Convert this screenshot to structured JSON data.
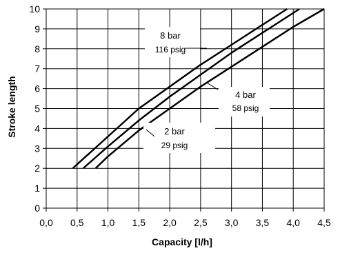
{
  "chart_data": {
    "type": "line",
    "title": "",
    "xlabel": "Capacity [l/h]",
    "ylabel": "Stroke length",
    "xlim": [
      0,
      4.5
    ],
    "ylim": [
      0,
      10
    ],
    "x_ticks": [
      "0,0",
      "0,5",
      "1,0",
      "1,5",
      "2,0",
      "2,5",
      "3,0",
      "3,5",
      "4,0",
      "4,5"
    ],
    "y_ticks": [
      "0",
      "1",
      "2",
      "3",
      "4",
      "5",
      "6",
      "7",
      "8",
      "9",
      "10"
    ],
    "grid": true,
    "legend": "none",
    "series": [
      {
        "name": "8 bar",
        "x": [
          0.43,
          1.0,
          1.5,
          2.0,
          2.5,
          3.0,
          3.5,
          3.9
        ],
        "y": [
          2.0,
          3.6,
          5.0,
          6.1,
          7.2,
          8.2,
          9.2,
          10.0
        ]
      },
      {
        "name": "4 bar",
        "x": [
          0.6,
          1.0,
          1.5,
          2.0,
          2.5,
          3.0,
          3.5,
          4.1
        ],
        "y": [
          2.0,
          3.1,
          4.4,
          5.6,
          6.7,
          7.8,
          8.8,
          10.0
        ]
      },
      {
        "name": "2 bar",
        "x": [
          0.8,
          1.0,
          1.5,
          2.0,
          2.5,
          3.0,
          3.5,
          4.0,
          4.5
        ],
        "y": [
          2.0,
          2.6,
          3.9,
          5.0,
          6.1,
          7.1,
          8.1,
          9.1,
          10.0
        ]
      }
    ],
    "annotations": [
      {
        "series": "8 bar",
        "main": "8 bar",
        "sub": "116 psig"
      },
      {
        "series": "4 bar",
        "main": "4 bar",
        "sub": "58 psig"
      },
      {
        "series": "2 bar",
        "main": "2 bar",
        "sub": "29 psig"
      }
    ],
    "colors": {
      "line": "#000000",
      "grid": "#000000",
      "background": "#ffffff"
    }
  }
}
